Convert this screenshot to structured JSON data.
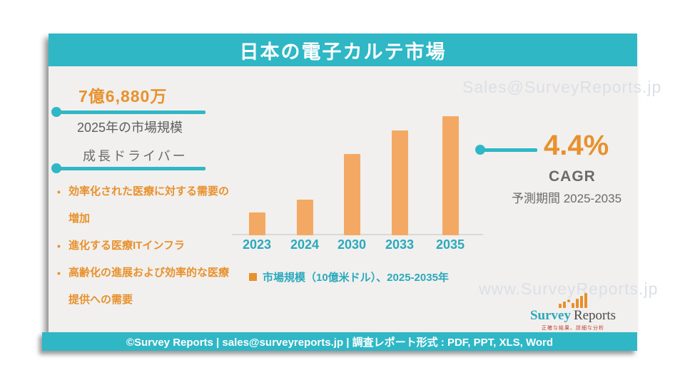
{
  "colors": {
    "teal": "#2FB7C6",
    "accent_orange": "#E8912D",
    "bar_orange": "#F3A963",
    "panel_bg": "#F1F0EE",
    "gray_text": "#6a6a6a",
    "watermark": "#DBDFE6",
    "tagline_red": "#C0392B"
  },
  "header": {
    "title": "日本の電子カルテ市場"
  },
  "market_size": {
    "value": "7億6,880万",
    "label": "2025年の市場規模"
  },
  "growth_drivers": {
    "heading": "成長ドライバー",
    "items": [
      "効率化された医療に対する需要の増加",
      "進化する医療ITインフラ",
      "高齢化の進展および効率的な医療提供への需要"
    ]
  },
  "cagr": {
    "value": "4.4%",
    "label": "CAGR",
    "period": "予測期間 2025-2035"
  },
  "chart_data": {
    "type": "bar",
    "categories": [
      "2023",
      "2024",
      "2030",
      "2033",
      "2035"
    ],
    "values": [
      32,
      50,
      114,
      147,
      167
    ],
    "values_note": "relative bar heights in px; no numeric y-axis shown in figure",
    "title": "",
    "xlabel": "",
    "ylabel": "",
    "legend_label": "市場規模（10億米ドル）、2025-2035年",
    "legend_marker_color": "#E8912D",
    "bar_color": "#F3A963",
    "grid": false,
    "legend_position": "bottom"
  },
  "watermarks": {
    "top_right": "Sales@SurveyReports.jp",
    "bottom_right": "www.SurveyReports.jp"
  },
  "logo": {
    "word1": "Survey",
    "word2": "Reports",
    "tagline": "正確な結果、詳細な分析",
    "icon": "bar-chart-icon"
  },
  "footer": {
    "text": "©Survey Reports | sales@surveyreports.jp |  調査レポート形式 : PDF, PPT, XLS, Word"
  }
}
